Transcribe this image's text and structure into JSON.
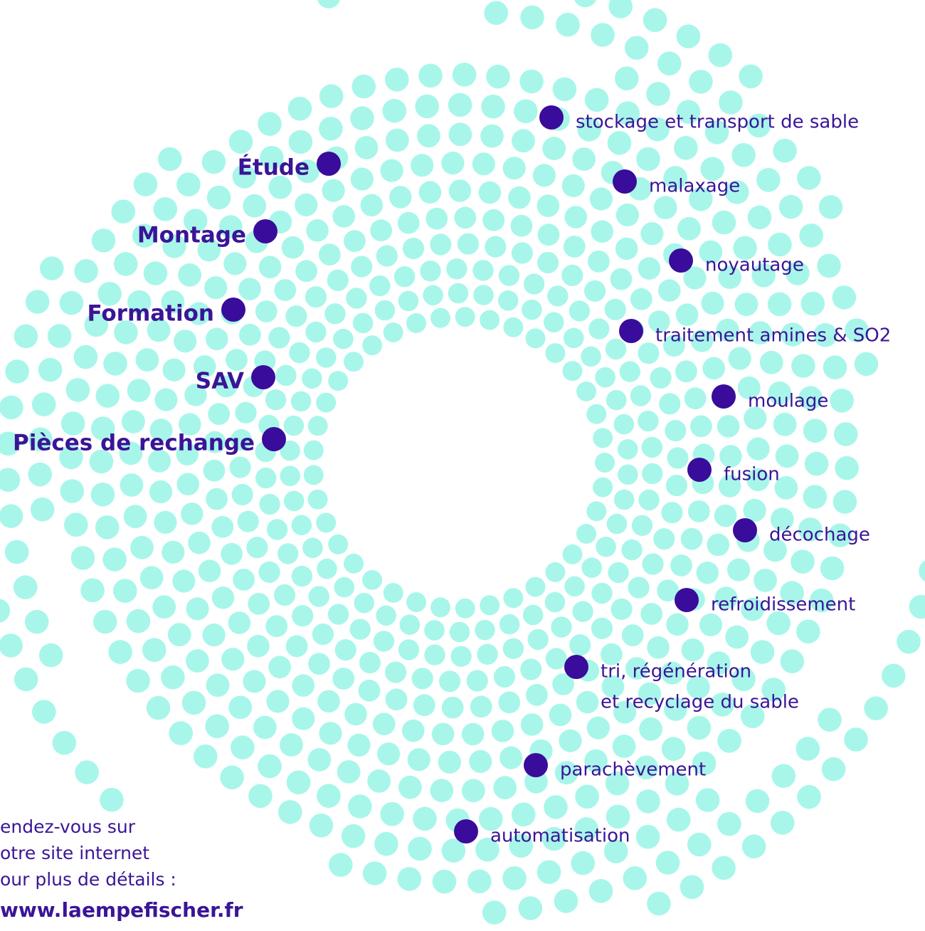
{
  "services": [
    "Étude",
    "Montage",
    "Formation",
    "SAV",
    "Pièces de rechange"
  ],
  "processes": [
    {
      "lines": [
        "stockage et transport de sable"
      ]
    },
    {
      "lines": [
        "malaxage"
      ]
    },
    {
      "lines": [
        "noyautage"
      ]
    },
    {
      "lines": [
        "traitement amines & SO2"
      ]
    },
    {
      "lines": [
        "moulage"
      ]
    },
    {
      "lines": [
        "fusion"
      ]
    },
    {
      "lines": [
        "décochage"
      ]
    },
    {
      "lines": [
        "refroidissement"
      ]
    },
    {
      "lines": [
        "tri, régénération",
        "et recyclage du sable"
      ]
    },
    {
      "lines": [
        "parachèvement"
      ]
    },
    {
      "lines": [
        "automatisation"
      ]
    }
  ],
  "footer": {
    "lines": [
      "endez-vous sur",
      "otre site internet",
      "our plus de détails :"
    ],
    "url": "www.laempefischer.fr"
  }
}
